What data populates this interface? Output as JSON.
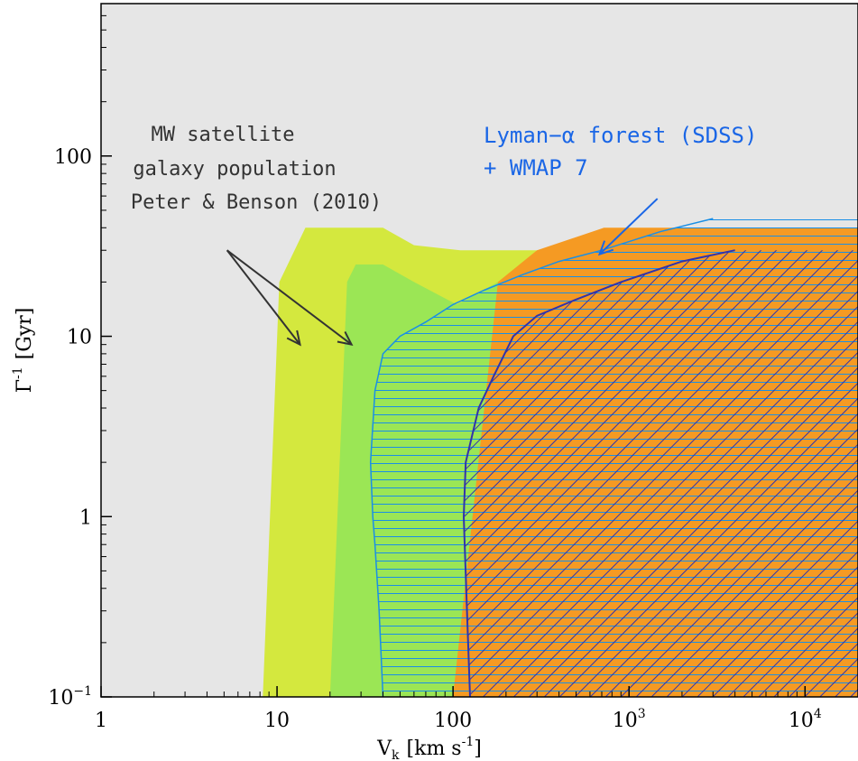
{
  "chart_data": {
    "type": "area",
    "xlabel": "V",
    "xlabel_sub": "k",
    "xlabel_units": "[km s",
    "xlabel_units_sup": "-1",
    "xlabel_units_end": "]",
    "ylabel": "Γ",
    "ylabel_sup": "-1",
    "ylabel_units": "[Gyr]",
    "x_scale": "log",
    "y_scale": "log",
    "xlim": [
      1,
      20000
    ],
    "ylim": [
      0.1,
      700
    ],
    "x_ticks": [
      {
        "value": 1,
        "label": "1"
      },
      {
        "value": 10,
        "label": "10"
      },
      {
        "value": 100,
        "label": "100"
      },
      {
        "value": 1000,
        "label": "10",
        "sup": "3"
      },
      {
        "value": 10000,
        "label": "10",
        "sup": "4"
      }
    ],
    "y_ticks": [
      {
        "value": 0.1,
        "label": "10",
        "sup": "−1"
      },
      {
        "value": 1,
        "label": "1"
      },
      {
        "value": 10,
        "label": "10"
      },
      {
        "value": 100,
        "label": "100"
      }
    ],
    "colors": {
      "excluded_background": "#e6e6e6",
      "mw_outer": "#d4e83e",
      "mw_inner": "#9be655",
      "orange_region": "#f59a23",
      "lyman_hatch": "#1a8fe6",
      "purple_hatch": "#3333aa",
      "arrow_dark": "#333333",
      "arrow_blue": "#1a66e6"
    },
    "regions": [
      {
        "id": "mw_outer",
        "fill": "#d4e83e",
        "points": [
          [
            8.3,
            0.1
          ],
          [
            10.3,
            20
          ],
          [
            14.5,
            40
          ],
          [
            25,
            40
          ],
          [
            40,
            40
          ],
          [
            60,
            32
          ],
          [
            110,
            30
          ],
          [
            340,
            30
          ],
          [
            20000,
            30
          ],
          [
            20000,
            0.1
          ]
        ]
      },
      {
        "id": "mw_inner",
        "fill": "#9be655",
        "points": [
          [
            20,
            0.1
          ],
          [
            25,
            20
          ],
          [
            28,
            25
          ],
          [
            40,
            25
          ],
          [
            60,
            20
          ],
          [
            105,
            15
          ],
          [
            180,
            20
          ],
          [
            20000,
            20
          ],
          [
            20000,
            0.1
          ]
        ]
      },
      {
        "id": "orange",
        "fill": "#f59a23",
        "points": [
          [
            100,
            0.1
          ],
          [
            180,
            20
          ],
          [
            300,
            30
          ],
          [
            720,
            40
          ],
          [
            20000,
            40
          ],
          [
            20000,
            0.1
          ]
        ]
      }
    ],
    "series": [
      {
        "id": "lyman_alpha_boundary",
        "color": "#1a8fe6",
        "hatch": "horizontal",
        "points": [
          [
            40,
            0.1
          ],
          [
            38,
            0.3
          ],
          [
            36,
            0.7
          ],
          [
            35,
            1
          ],
          [
            34,
            2
          ],
          [
            36,
            5
          ],
          [
            40,
            8
          ],
          [
            50,
            10
          ],
          [
            70,
            12
          ],
          [
            100,
            15
          ],
          [
            150,
            18
          ],
          [
            250,
            22
          ],
          [
            400,
            26
          ],
          [
            700,
            30
          ],
          [
            1500,
            38
          ],
          [
            3000,
            45
          ],
          [
            20000,
            45
          ],
          [
            20000,
            0.1
          ]
        ]
      },
      {
        "id": "purple_boundary",
        "color": "#3333aa",
        "hatch": "diagonal",
        "points": [
          [
            125,
            0.1
          ],
          [
            120,
            0.3
          ],
          [
            115,
            1
          ],
          [
            118,
            2
          ],
          [
            140,
            4
          ],
          [
            170,
            6
          ],
          [
            220,
            10
          ],
          [
            300,
            13
          ],
          [
            500,
            16
          ],
          [
            900,
            20
          ],
          [
            2000,
            26
          ],
          [
            4000,
            30
          ],
          [
            20000,
            30
          ],
          [
            20000,
            0.1
          ]
        ]
      }
    ],
    "annotations": [
      {
        "id": "mw",
        "lines": [
          "MW satellite",
          "galaxy population",
          "Peter & Benson (2010)"
        ],
        "color": "#333333"
      },
      {
        "id": "lyman",
        "lines": [
          "Lyman−α forest (SDSS)",
          "+ WMAP 7"
        ],
        "color": "#1a66e6"
      }
    ],
    "arrows": [
      {
        "from": [
          5.2,
          30
        ],
        "to": [
          13.5,
          9
        ],
        "color": "#333333"
      },
      {
        "from": [
          5.2,
          30
        ],
        "to": [
          26.5,
          9
        ],
        "color": "#333333"
      },
      {
        "from": [
          1450,
          58
        ],
        "to": [
          680,
          28.5
        ],
        "color": "#1a66e6"
      }
    ],
    "grid": false,
    "legend": "none"
  }
}
